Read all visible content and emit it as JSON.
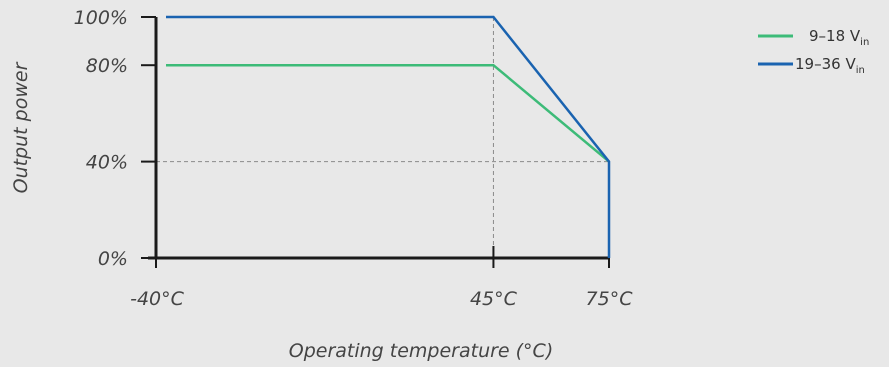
{
  "chart_data": {
    "type": "line",
    "xlabel": "Operating temperature (°C)",
    "ylabel": "Output power",
    "x_ticks": [
      {
        "value": -40,
        "label": "-40°C"
      },
      {
        "value": 45,
        "label": "45°C"
      },
      {
        "value": 75,
        "label": "75°C"
      }
    ],
    "y_ticks": [
      {
        "value": 0,
        "label": "0%"
      },
      {
        "value": 40,
        "label": "40%"
      },
      {
        "value": 80,
        "label": "80%"
      },
      {
        "value": 100,
        "label": "100%"
      }
    ],
    "xlim": [
      -40,
      75
    ],
    "ylim": [
      0,
      100
    ],
    "grid": "dashed guide lines at 45°C, 75°C and 40%",
    "legend_position": "top-right",
    "series": [
      {
        "name": "9–18 V",
        "name_main": "9–18 V",
        "name_sub": "in",
        "color": "#3dbb78",
        "points": [
          [
            -40,
            80
          ],
          [
            45,
            80
          ],
          [
            75,
            40
          ]
        ]
      },
      {
        "name": "19–36 V",
        "name_main": "19–36 V",
        "name_sub": "in",
        "color": "#1a63b0",
        "points": [
          [
            -40,
            100
          ],
          [
            45,
            100
          ],
          [
            75,
            40
          ],
          [
            75,
            0
          ]
        ]
      }
    ]
  }
}
